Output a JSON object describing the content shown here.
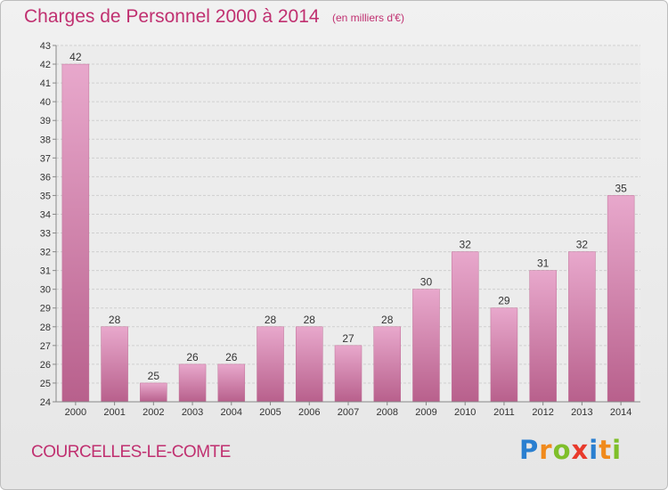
{
  "title": "Charges de Personnel 2000 à 2014",
  "subtitle": "(en milliers d'€)",
  "footer": {
    "commune": "COURCELLES-LE-COMTE",
    "logo": {
      "letters": [
        "P",
        "r",
        "o",
        "x",
        "i",
        "t",
        "i"
      ],
      "colors": [
        "#2a7fd0",
        "#f08a1c",
        "#7fbf2a",
        "#e83a2c",
        "#2a7fd0",
        "#f08a1c",
        "#7fbf2a"
      ]
    }
  },
  "chart_data": {
    "type": "bar",
    "title": "Charges de Personnel 2000 à 2014",
    "subtitle": "(en milliers d'€)",
    "categories": [
      "2000",
      "2001",
      "2002",
      "2003",
      "2004",
      "2005",
      "2006",
      "2007",
      "2008",
      "2009",
      "2010",
      "2011",
      "2012",
      "2013",
      "2014"
    ],
    "values": [
      42,
      28,
      25,
      26,
      26,
      28,
      28,
      27,
      28,
      30,
      32,
      29,
      31,
      32,
      35
    ],
    "ylim": [
      24,
      43
    ],
    "yticks": [
      24,
      25,
      26,
      27,
      28,
      29,
      30,
      31,
      32,
      33,
      34,
      35,
      36,
      37,
      38,
      39,
      40,
      41,
      42,
      43
    ],
    "grid": true,
    "bar_color": "#d880b0",
    "text_color": "#c03070"
  }
}
